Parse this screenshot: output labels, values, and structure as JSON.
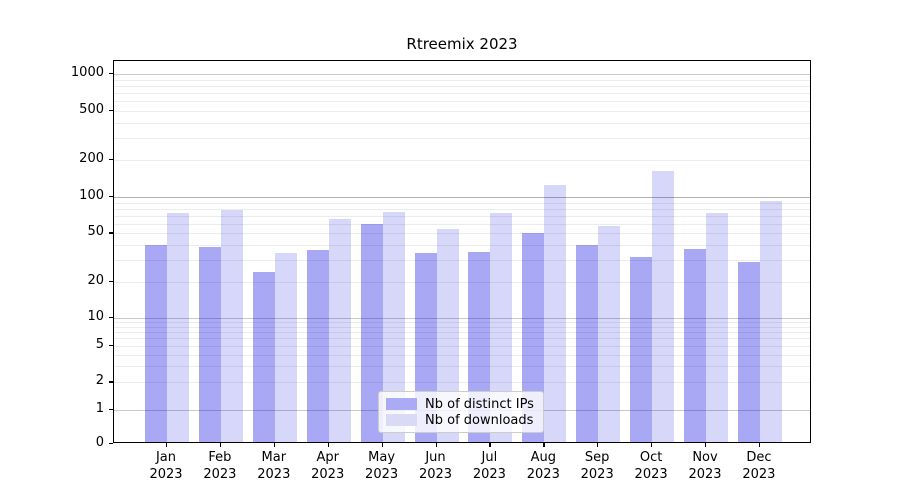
{
  "title": "Rtreemix 2023",
  "colors": {
    "bar_base": "#0000e0",
    "ips_swatch": "#aaaaf5",
    "downloads_swatch": "#dadaf7",
    "grid_minor": "#ececec",
    "grid_decade": "#c9c9c9",
    "grid_hundred": "#b0b0b0",
    "spine": "#000000"
  },
  "legend": {
    "items": [
      {
        "label": "Nb of distinct IPs",
        "series": "ips"
      },
      {
        "label": "Nb of downloads",
        "series": "dl"
      }
    ]
  },
  "chart_data": {
    "type": "bar",
    "title": "Rtreemix 2023",
    "categories": [
      "Jan 2023",
      "Feb 2023",
      "Mar 2023",
      "Apr 2023",
      "May 2023",
      "Jun 2023",
      "Jul 2023",
      "Aug 2023",
      "Sep 2023",
      "Oct 2023",
      "Nov 2023",
      "Dec 2023"
    ],
    "series": [
      {
        "name": "Nb of distinct IPs",
        "key": "ips",
        "values": [
          39,
          37,
          23,
          35,
          58,
          33,
          34,
          49,
          39,
          31,
          36,
          28
        ]
      },
      {
        "name": "Nb of downloads",
        "key": "dl",
        "values": [
          71,
          75,
          33,
          64,
          72,
          52,
          71,
          120,
          55,
          157,
          71,
          90
        ]
      }
    ],
    "yscale": "symlog",
    "yticks": [
      0,
      1,
      2,
      5,
      10,
      20,
      50,
      100,
      200,
      500,
      1000
    ],
    "ylim": [
      0,
      1000
    ],
    "xlabel": "",
    "ylabel": "",
    "grid": true,
    "legend_position": "lower center"
  }
}
